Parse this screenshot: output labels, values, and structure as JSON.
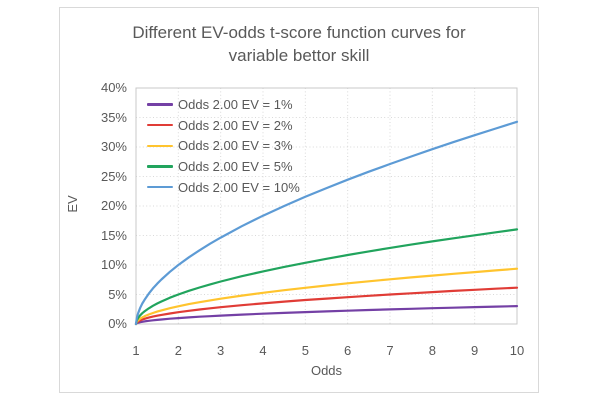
{
  "chart_data": {
    "type": "line",
    "title": "Different EV-odds t-score function curves for variable bettor skill",
    "title_lines": [
      "Different EV-odds t-score function curves for",
      "variable bettor skill"
    ],
    "xlabel": "Odds",
    "ylabel": "EV",
    "xlim": [
      1,
      10
    ],
    "ylim_percent": [
      0,
      40
    ],
    "x_ticks": [
      1,
      2,
      3,
      4,
      5,
      6,
      7,
      8,
      9,
      10
    ],
    "y_ticks_percent": [
      0,
      5,
      10,
      15,
      20,
      25,
      30,
      35,
      40
    ],
    "y_tick_labels": [
      "0%",
      "5%",
      "10%",
      "15%",
      "20%",
      "25%",
      "30%",
      "35%",
      "40%"
    ],
    "grid": "dotted",
    "legend_position": "top-left-inside",
    "x": [
      1,
      1.02,
      1.05,
      1.1,
      1.15,
      1.2,
      1.3,
      1.4,
      1.5,
      1.6,
      1.8,
      2,
      2.25,
      2.5,
      2.75,
      3,
      3.5,
      4,
      4.5,
      5,
      5.5,
      6,
      6.5,
      7,
      7.5,
      8,
      8.5,
      9,
      9.5,
      10
    ],
    "series": [
      {
        "name": "Odds 2.00 EV = 1%",
        "color": "#7440A5",
        "values_percent": [
          0,
          0.14,
          0.22,
          0.31,
          0.38,
          0.44,
          0.54,
          0.63,
          0.7,
          0.77,
          0.89,
          1.0,
          1.12,
          1.23,
          1.33,
          1.42,
          1.59,
          1.74,
          1.88,
          2.01,
          2.14,
          2.26,
          2.37,
          2.47,
          2.58,
          2.68,
          2.77,
          2.86,
          2.95,
          3.04
        ]
      },
      {
        "name": "Odds 2.00 EV = 2%",
        "color": "#E03C36",
        "values_percent": [
          0,
          0.26,
          0.43,
          0.61,
          0.76,
          0.88,
          1.08,
          1.25,
          1.4,
          1.54,
          1.78,
          2.0,
          2.24,
          2.46,
          2.66,
          2.85,
          3.19,
          3.5,
          3.79,
          4.06,
          4.31,
          4.55,
          4.78,
          5.0,
          5.21,
          5.41,
          5.61,
          5.8,
          5.98,
          6.16
        ]
      },
      {
        "name": "Odds 2.00 EV = 3%",
        "color": "#FFC42E",
        "values_percent": [
          0,
          0.38,
          0.63,
          0.91,
          1.12,
          1.31,
          1.61,
          1.87,
          2.1,
          2.31,
          2.67,
          3.0,
          3.37,
          3.7,
          4.0,
          4.29,
          4.81,
          5.29,
          5.73,
          6.13,
          6.52,
          6.89,
          7.24,
          7.57,
          7.9,
          8.2,
          8.51,
          8.8,
          9.09,
          9.37
        ]
      },
      {
        "name": "Odds 2.00 EV = 5%",
        "color": "#21A45D",
        "values_percent": [
          0,
          0.6,
          1.01,
          1.47,
          1.83,
          2.14,
          2.65,
          3.09,
          3.47,
          3.82,
          4.45,
          5.0,
          5.62,
          6.19,
          6.71,
          7.2,
          8.1,
          8.91,
          9.67,
          10.38,
          11.05,
          11.69,
          12.3,
          12.89,
          13.45,
          14.0,
          14.53,
          15.04,
          15.54,
          16.03
        ]
      },
      {
        "name": "Odds 2.00 EV = 10%",
        "color": "#5D9BD5",
        "values_percent": [
          0,
          1.01,
          1.81,
          2.74,
          3.47,
          4.09,
          5.14,
          6.03,
          6.83,
          7.55,
          8.84,
          10.0,
          11.31,
          12.5,
          13.61,
          14.65,
          16.58,
          18.35,
          20.0,
          21.56,
          23.04,
          24.45,
          25.81,
          27.12,
          28.39,
          29.63,
          30.83,
          32.0,
          33.14,
          34.27
        ]
      }
    ]
  },
  "colors": {
    "background": "#FFFFFF",
    "text": "#595959",
    "frame_border": "#D9D9D9",
    "plot_border": "#C9C9C9",
    "gridline": "#D9D9D9"
  }
}
